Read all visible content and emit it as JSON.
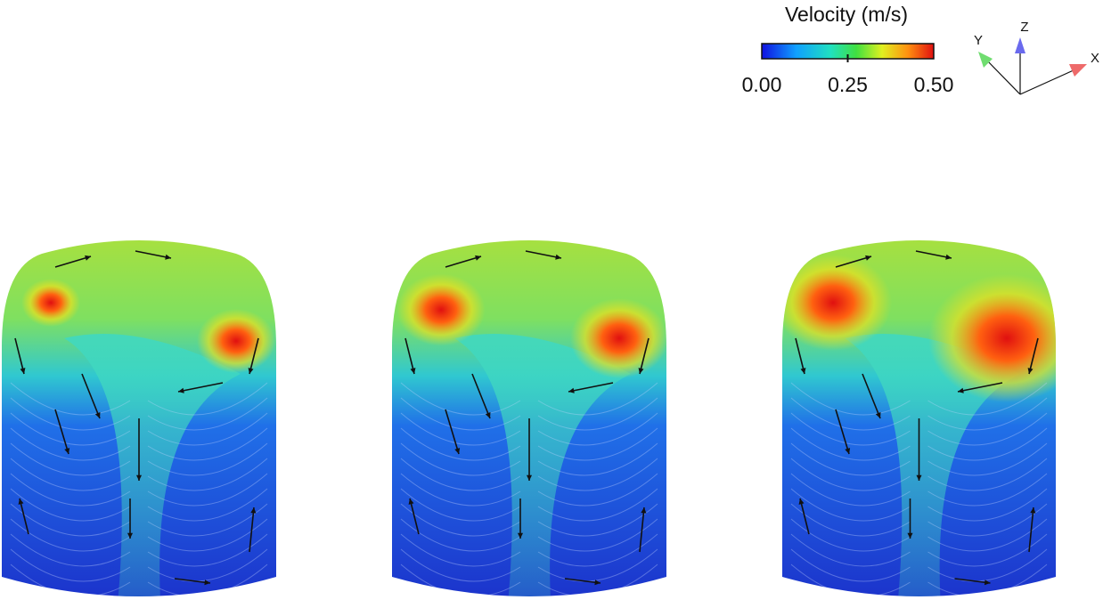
{
  "legend": {
    "title": "Velocity (m/s)",
    "ticks": [
      {
        "value": 0,
        "label": "0.00"
      },
      {
        "value": 0.25,
        "label": "0.25"
      },
      {
        "value": 0.5,
        "label": "0.50"
      }
    ]
  },
  "axes": {
    "x": "X",
    "y": "Y",
    "z": "Z"
  }
}
